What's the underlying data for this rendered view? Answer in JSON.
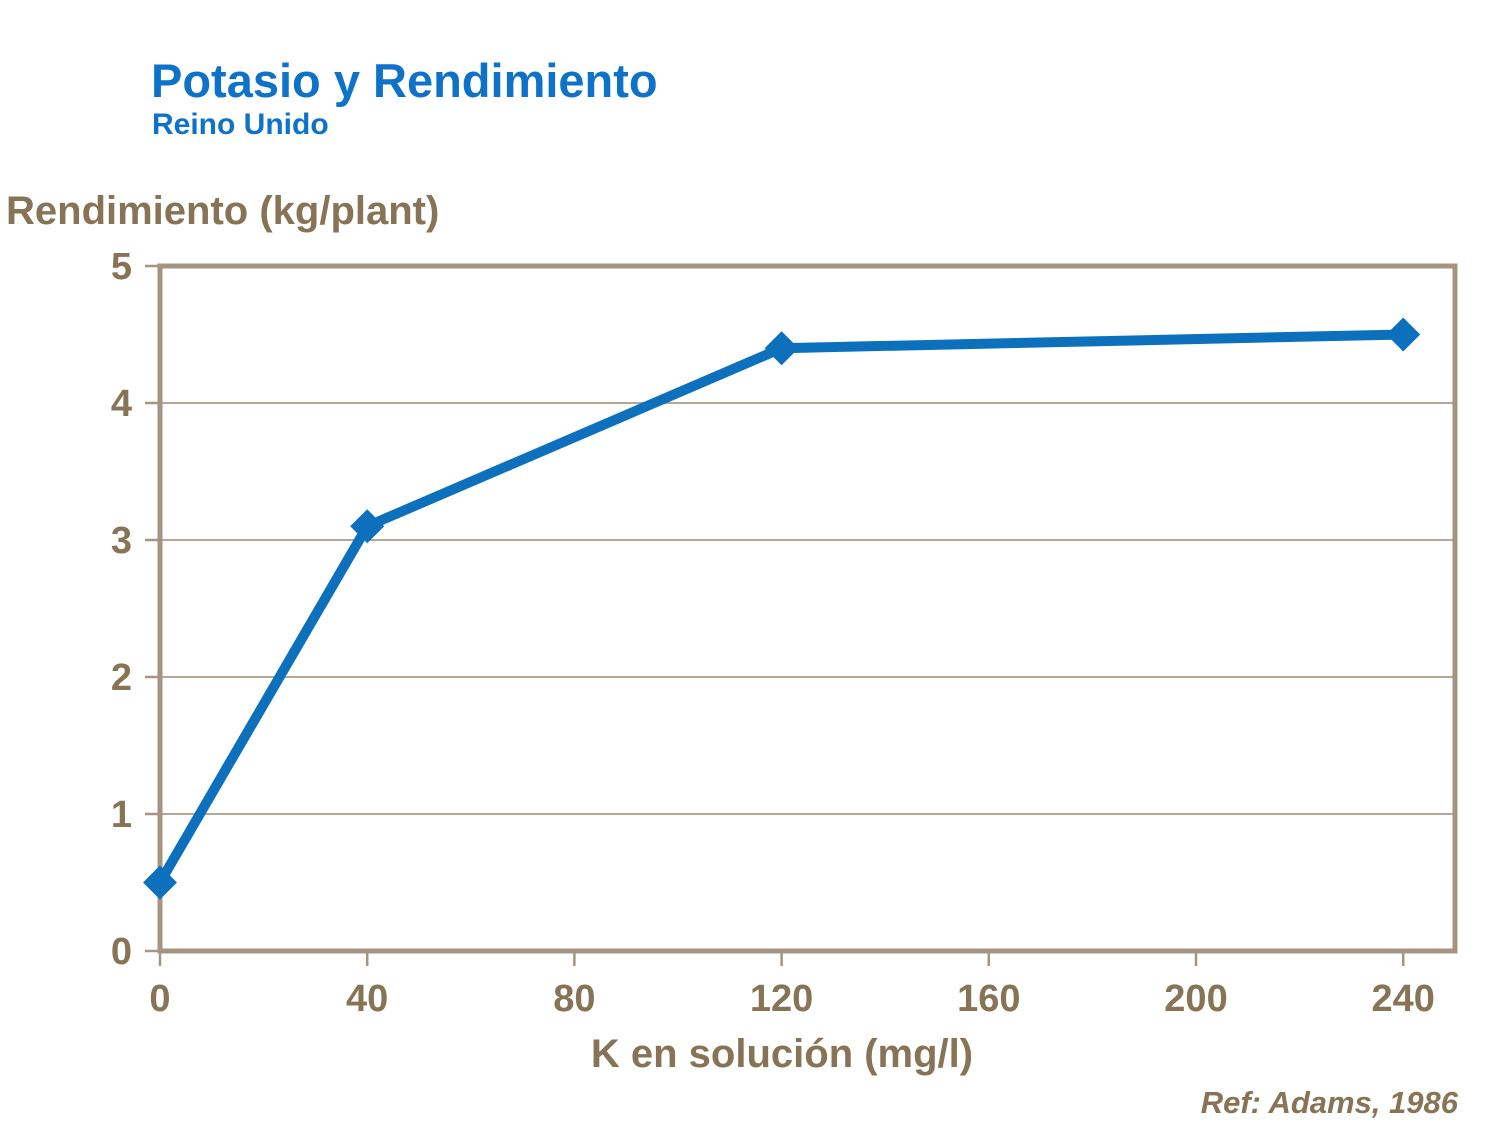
{
  "header": {
    "title": "Potasio y Rendimiento",
    "subtitle": "Reino Unido"
  },
  "footer": {
    "reference": "Ref: Adams, 1986"
  },
  "colors": {
    "background": "#ffffff",
    "title_blue": "#0e73c8",
    "line_blue": "#0d70bd",
    "text_brown": "#877355",
    "axis_frame": "#a59482",
    "gridline": "#b5a897"
  },
  "chart_data": {
    "type": "line",
    "title": "Potasio y Rendimiento",
    "subtitle": "Reino Unido",
    "xlabel": "K en solución (mg/l)",
    "ylabel": "Rendimiento (kg/plant)",
    "series": [
      {
        "name": "Rendimiento",
        "x": [
          0,
          40,
          120,
          240
        ],
        "y": [
          0.5,
          3.1,
          4.4,
          4.5
        ]
      }
    ],
    "xlim": [
      0,
      250
    ],
    "ylim": [
      0,
      5
    ],
    "x_ticks": [
      0,
      40,
      80,
      120,
      160,
      200,
      240
    ],
    "y_ticks": [
      0,
      1,
      2,
      3,
      4,
      5
    ],
    "grid": "horizontal-only",
    "legend": "none",
    "marker": "diamond",
    "annotations": [
      "Ref: Adams, 1986"
    ]
  }
}
